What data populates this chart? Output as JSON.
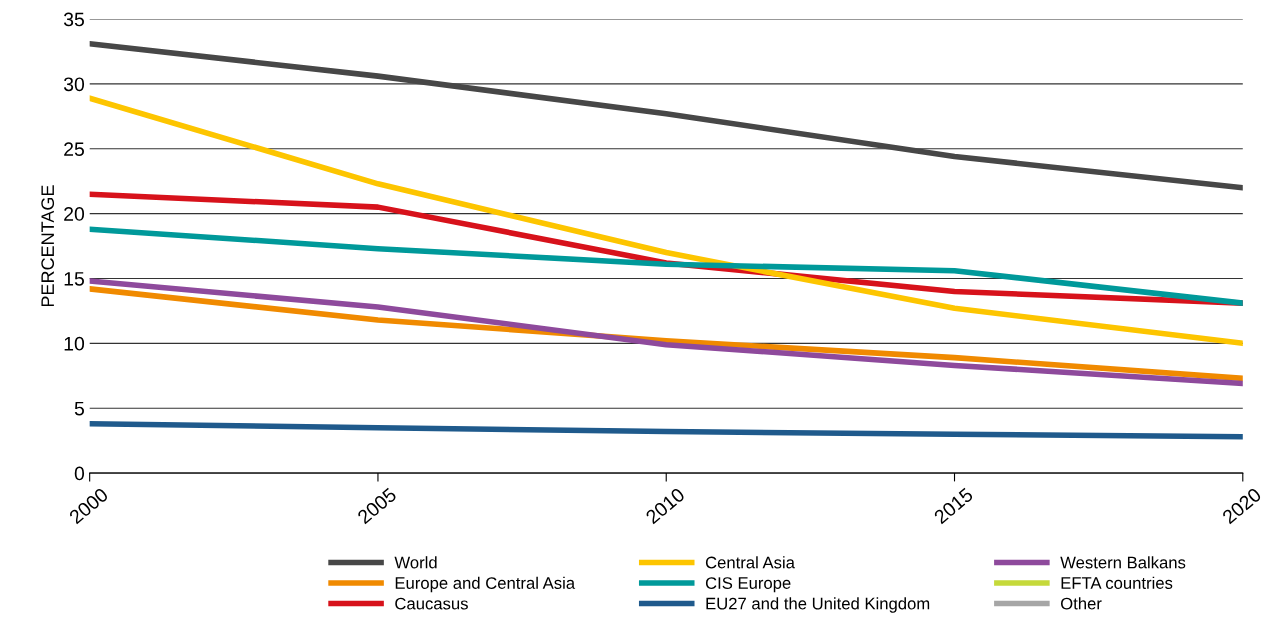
{
  "chart_data": {
    "type": "line",
    "ylabel": "PERCENTAGE",
    "x": [
      2000,
      2005,
      2010,
      2015,
      2020
    ],
    "xlim": [
      2000,
      2020
    ],
    "xticks": [
      2000,
      2005,
      2010,
      2015,
      2020
    ],
    "ylim": [
      0,
      35
    ],
    "yticks": [
      0,
      5,
      10,
      15,
      20,
      25,
      30,
      35
    ],
    "grid": "y",
    "legend": "bottom",
    "marker": "none",
    "line_style": "solid",
    "series": [
      {
        "name": "World",
        "color": "#474747",
        "values": [
          33.1,
          30.6,
          27.7,
          24.4,
          22.0
        ]
      },
      {
        "name": "Europe and Central Asia",
        "color": "#f08a00",
        "values": [
          14.2,
          11.8,
          10.2,
          8.9,
          7.3
        ]
      },
      {
        "name": "Caucasus",
        "color": "#d7121b",
        "values": [
          21.5,
          20.5,
          16.2,
          14.0,
          13.1
        ]
      },
      {
        "name": "Central Asia",
        "color": "#fdc500",
        "values": [
          28.9,
          22.3,
          17.0,
          12.7,
          10.0
        ]
      },
      {
        "name": "CIS Europe",
        "color": "#00999a",
        "values": [
          18.8,
          17.3,
          16.1,
          15.6,
          13.1
        ]
      },
      {
        "name": "EU27 and the United Kingdom",
        "color": "#1f5a8c",
        "values": [
          3.8,
          3.5,
          3.2,
          3.0,
          2.8
        ]
      },
      {
        "name": "Western Balkans",
        "color": "#8e4a9c",
        "values": [
          14.8,
          12.8,
          9.9,
          8.3,
          6.9
        ]
      },
      {
        "name": "EFTA countries",
        "color": "#c5d93a",
        "values": [
          null,
          null,
          null,
          null,
          null
        ]
      },
      {
        "name": "Other",
        "color": "#a6a6a6",
        "values": [
          null,
          null,
          null,
          null,
          null
        ]
      }
    ]
  }
}
